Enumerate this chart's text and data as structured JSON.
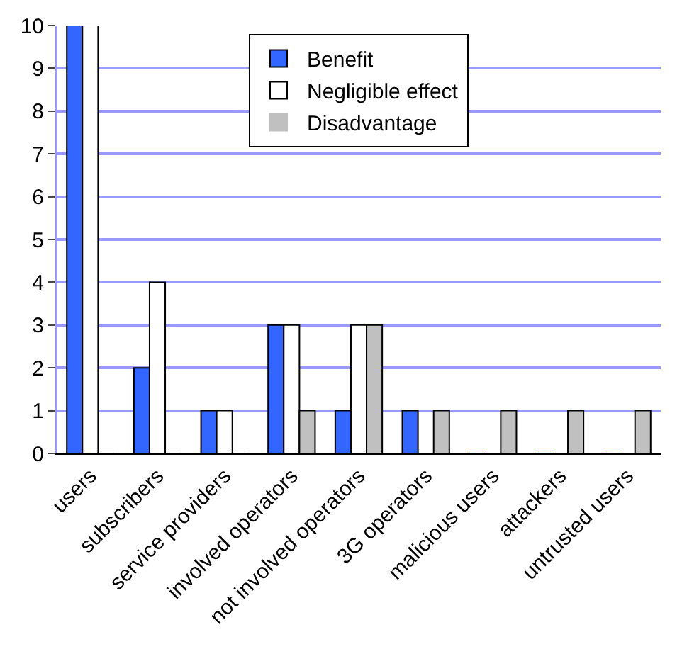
{
  "chart_data": {
    "type": "bar",
    "categories": [
      "users",
      "subscribers",
      "service providers",
      "involved operators",
      "not involved operators",
      "3G operators",
      "malicious users",
      "attackers",
      "untrusted users"
    ],
    "series": [
      {
        "name": "Benefit",
        "color": "#3366ff",
        "values": [
          10,
          2,
          1,
          3,
          1,
          1,
          0,
          0,
          0
        ]
      },
      {
        "name": "Negligible effect",
        "color": "#ffffff",
        "values": [
          10,
          4,
          1,
          3,
          3,
          0,
          0,
          0,
          0
        ]
      },
      {
        "name": "Disadvantage",
        "color": "#c0c0c0",
        "values": [
          0,
          0,
          0,
          1,
          3,
          1,
          1,
          1,
          1
        ]
      }
    ],
    "ylim": [
      0,
      10
    ],
    "yticks": [
      0,
      1,
      2,
      3,
      4,
      5,
      6,
      7,
      8,
      9,
      10
    ],
    "grid": "y",
    "legend": "top"
  }
}
